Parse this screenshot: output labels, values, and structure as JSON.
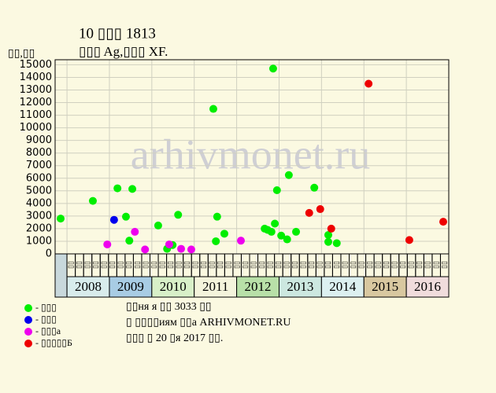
{
  "chart_data": {
    "type": "scatter",
    "title": "10 ▯▯▯ 1813",
    "subtitle": "▯▯▯ Ag,▯▯▯ XF.",
    "y_label": "▯▯,▯▯",
    "watermark": "arhivmonet.ru",
    "footer": [
      "▯▯ня я ▯▯ 3033 ▯▯",
      "▯ ▯▯▯▯иям ▯▯а ARHIVMONET.RU",
      "▯▯▯ ▯ 20 ▯я 2017 ▯▯."
    ],
    "xlim": [
      2007.72,
      2017
    ],
    "ylim": [
      0,
      15400
    ],
    "yticks": [
      0,
      1000,
      2000,
      3000,
      4000,
      5000,
      6000,
      7000,
      8000,
      9000,
      10000,
      11000,
      12000,
      13000,
      14000,
      15000
    ],
    "xticks": [
      2008,
      2009,
      2010,
      2011,
      2012,
      2013,
      2014,
      2015,
      2016,
      2017
    ],
    "year_labels": [
      "2008",
      "2009",
      "2010",
      "2011",
      "2012",
      "2013",
      "2014",
      "2015",
      "2016"
    ],
    "year_colors": [
      "#d8ecec",
      "#a8cce4",
      "#d8f0c8",
      "#f4f4dc",
      "#b8e0a8",
      "#cce8e0",
      "#dcf0f0",
      "#d8c8a0",
      "#f0dcdc"
    ],
    "column_labels": [
      "▯▯",
      "▯▯",
      "▯▯",
      "▯▯",
      "▯▯",
      "▯▯",
      "▯▯",
      "▯▯",
      "▯▯",
      "▯▯",
      "▯▯",
      "▯▯",
      "▯▯",
      "▯▯",
      "▯▯",
      "▯▯",
      "▯▯",
      "▯▯",
      "▯▯",
      "▯▯",
      "▯▯",
      "▯▯",
      "▯▯",
      "▯▯",
      "▯▯",
      "▯▯",
      "▯▯",
      "▯▯",
      "▯▯",
      "▯▯",
      "▯▯",
      "▯▯",
      "▯▯",
      "▯▯",
      "▯▯",
      "▯▯",
      "▯▯",
      "▯▯",
      "▯▯",
      "▯▯",
      "▯▯",
      "▯▯",
      "▯▯",
      "▯▯",
      "▯▯",
      "▯▯"
    ],
    "grid": true,
    "series": [
      {
        "name": "- ▯▯▯",
        "color": "#00ee00",
        "x": [
          2007.85,
          2008.61,
          2009.19,
          2009.39,
          2009.47,
          2009.54,
          2010.15,
          2010.36,
          2010.49,
          2010.62,
          2011.45,
          2011.51,
          2011.54,
          2011.71,
          2012.66,
          2012.73,
          2012.82,
          2012.86,
          2012.9,
          2012.95,
          2013.05,
          2013.19,
          2013.23,
          2013.4,
          2013.83,
          2014.16,
          2014.16,
          2014.36
        ],
        "values": [
          2800,
          4200,
          5200,
          2950,
          1050,
          5150,
          2250,
          400,
          700,
          3100,
          11500,
          1000,
          2950,
          1600,
          2000,
          1900,
          1750,
          14700,
          2400,
          5050,
          1450,
          1150,
          6250,
          1750,
          5250,
          1500,
          950,
          850
        ]
      },
      {
        "name": "- ▯▯▯",
        "color": "#0000ee",
        "x": [
          2009.11
        ],
        "values": [
          2700
        ]
      },
      {
        "name": "- ▯▯▯а",
        "color": "#ee00ee",
        "x": [
          2008.95,
          2009.6,
          2009.84,
          2010.41,
          2010.69,
          2010.93,
          2012.1
        ],
        "values": [
          750,
          1750,
          350,
          750,
          400,
          350,
          1050
        ]
      },
      {
        "name": "- ▯▯▯▯▯Б",
        "color": "#ee0000",
        "x": [
          2013.71,
          2013.97,
          2014.23,
          2015.11,
          2016.07,
          2016.87
        ],
        "values": [
          3250,
          3550,
          2000,
          13500,
          1100,
          2550
        ]
      }
    ]
  }
}
